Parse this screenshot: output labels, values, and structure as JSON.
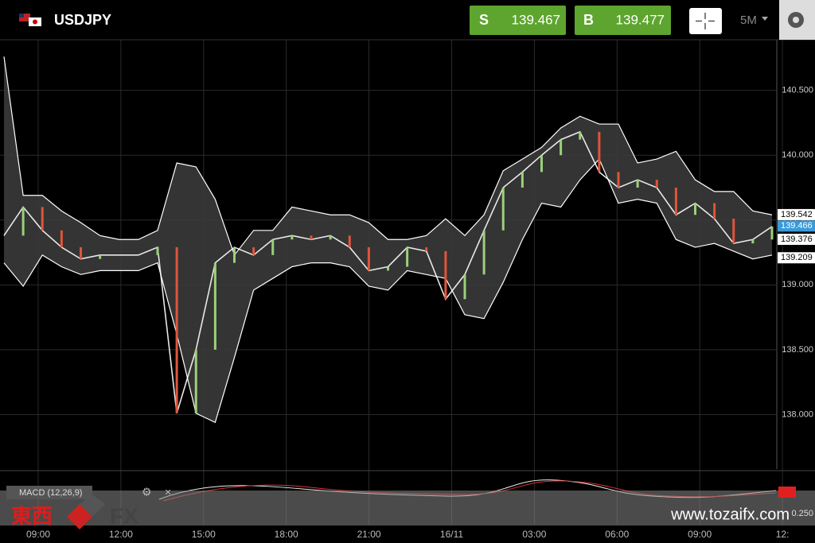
{
  "header": {
    "symbol": "USDJPY",
    "sell_label": "S",
    "sell_price": "139.467",
    "buy_label": "B",
    "buy_price": "139.477",
    "timeframe": "5M"
  },
  "chart_data": {
    "type": "line",
    "ylim": [
      137.58,
      140.89
    ],
    "yticks": [
      {
        "value": 138.0,
        "label": "138.000"
      },
      {
        "value": 138.5,
        "label": "138.500"
      },
      {
        "value": 139.0,
        "label": "139.000"
      },
      {
        "value": 139.5,
        "label": "139.500"
      },
      {
        "value": 140.0,
        "label": "140.000"
      },
      {
        "value": 140.5,
        "label": "140.500"
      }
    ],
    "time_labels": [
      "09:00",
      "12:00",
      "15:00",
      "18:00",
      "21:00",
      "16/11",
      "03:00",
      "06:00",
      "09:00",
      "12:"
    ],
    "grid": true,
    "series": [
      {
        "color": "#e8e8e8",
        "values": [
          139.38,
          139.6,
          139.42,
          139.29,
          139.2,
          139.23,
          139.23,
          139.23,
          139.29,
          138.01,
          138.5,
          139.17,
          139.29,
          139.23,
          139.35,
          139.38,
          139.35,
          139.38,
          139.29,
          139.11,
          139.14,
          139.29,
          139.26,
          138.89,
          139.08,
          139.42,
          139.75,
          139.87,
          140.0,
          140.12,
          140.18,
          139.87,
          139.75,
          139.81,
          139.75,
          139.54,
          139.63,
          139.51,
          139.32,
          139.35,
          139.45
        ]
      },
      {
        "color": "#ffffff",
        "values": [
          140.76,
          139.69,
          139.69,
          139.57,
          139.48,
          139.38,
          139.35,
          139.35,
          139.42,
          139.94,
          139.91,
          139.66,
          139.23,
          139.42,
          139.42,
          139.6,
          139.57,
          139.54,
          139.54,
          139.48,
          139.35,
          139.35,
          139.38,
          139.51,
          139.38,
          139.54,
          139.88,
          139.97,
          140.06,
          140.21,
          140.3,
          140.24,
          140.24,
          139.94,
          139.97,
          140.03,
          139.81,
          139.72,
          139.72,
          139.57,
          139.54
        ]
      },
      {
        "color": "#ffffff",
        "values": [
          139.17,
          138.99,
          139.23,
          139.14,
          139.08,
          139.11,
          139.11,
          139.11,
          139.17,
          138.62,
          138.01,
          137.94,
          138.44,
          138.96,
          139.05,
          139.14,
          139.17,
          139.17,
          139.14,
          138.99,
          138.96,
          139.11,
          139.08,
          139.05,
          138.77,
          138.74,
          139.02,
          139.35,
          139.63,
          139.6,
          139.81,
          139.97,
          139.63,
          139.66,
          139.63,
          139.35,
          139.29,
          139.32,
          139.26,
          139.2,
          139.23
        ]
      }
    ],
    "band_upper_last": 139.542,
    "current_price": 139.466,
    "band_middle_last": 139.376,
    "band_lower_last": 139.209,
    "macd_label": "MACD (12,26,9)",
    "macd_tick": "0.250"
  },
  "watermark": {
    "brand_cjk": "東西",
    "brand_fx": "FX",
    "url": "www.tozaifx.com"
  }
}
